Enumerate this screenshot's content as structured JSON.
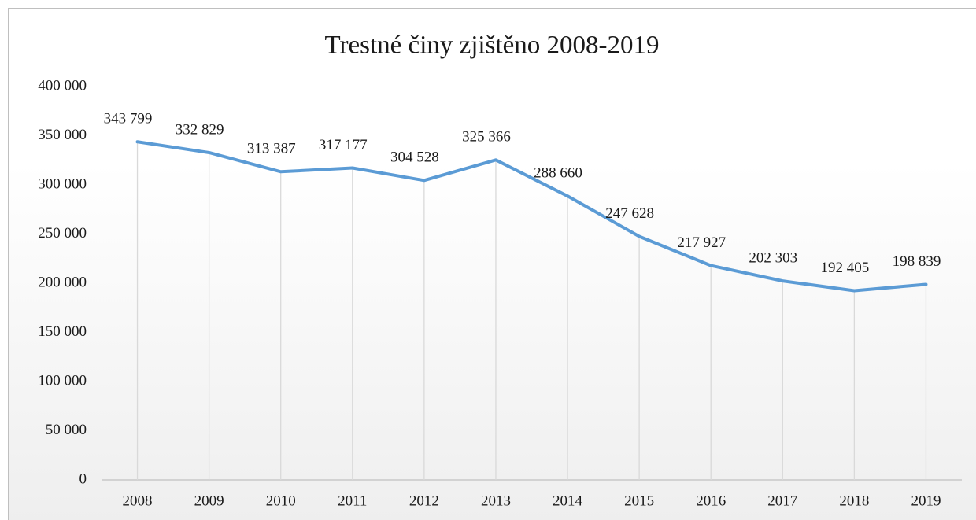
{
  "chart_data": {
    "type": "line",
    "title": "Trestné činy zjištěno 2008-2019",
    "categories": [
      "2008",
      "2009",
      "2010",
      "2011",
      "2012",
      "2013",
      "2014",
      "2015",
      "2016",
      "2017",
      "2018",
      "2019"
    ],
    "series": [
      {
        "name": "Trestné činy zjištěno",
        "color": "#5b9bd5",
        "values": [
          343799,
          332829,
          313387,
          317177,
          304528,
          325366,
          288660,
          247628,
          217927,
          202303,
          192405,
          198839
        ],
        "value_labels": [
          "343 799",
          "332 829",
          "313 387",
          "317 177",
          "304 528",
          "325 366",
          "288 660",
          "247 628",
          "217 927",
          "202 303",
          "192 405",
          "198 839"
        ]
      }
    ],
    "ylim": [
      0,
      400000
    ],
    "yticks": [
      0,
      {
        "value": 50000,
        "label": "50 000"
      },
      {
        "value": 100000,
        "label": "100 000"
      },
      {
        "value": 150000,
        "label": "150 000"
      },
      {
        "value": 200000,
        "label": "200 000"
      },
      {
        "value": 250000,
        "label": "250 000"
      },
      {
        "value": 300000,
        "label": "300 000"
      },
      {
        "value": 350000,
        "label": "350 000"
      },
      {
        "value": 400000,
        "label": "400 000"
      }
    ],
    "drop_lines": true
  }
}
